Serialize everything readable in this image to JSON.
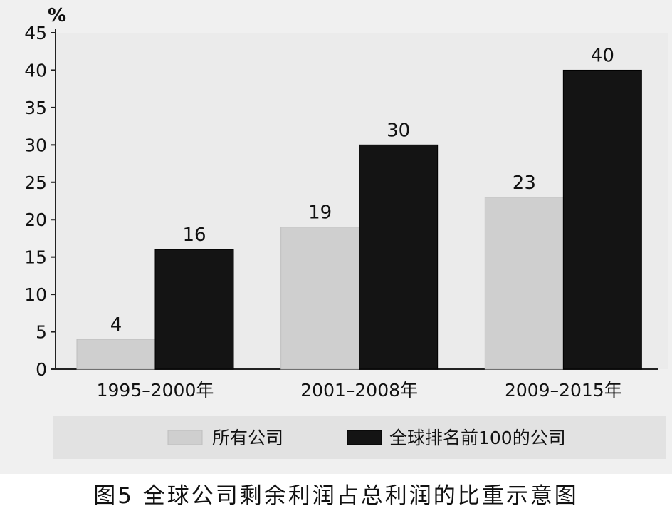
{
  "chart_data": {
    "type": "bar",
    "title": "",
    "xlabel": "",
    "ylabel": "",
    "y_unit": "%",
    "ylim": [
      0,
      45
    ],
    "yticks": [
      0,
      5,
      10,
      15,
      20,
      25,
      30,
      35,
      40,
      45
    ],
    "categories": [
      "1995–2000年",
      "2001–2008年",
      "2009–2015年"
    ],
    "series": [
      {
        "name": "所有公司",
        "color": "#cfcfcf",
        "values": [
          4,
          19,
          23
        ]
      },
      {
        "name": "全球排名前100的公司",
        "color": "#141414",
        "values": [
          16,
          30,
          40
        ]
      }
    ],
    "grid": false,
    "legend_position": "bottom",
    "data_labels": true,
    "plot_background": "#ececec"
  },
  "caption": "图5  全球公司剩余利润占总利润的比重示意图"
}
